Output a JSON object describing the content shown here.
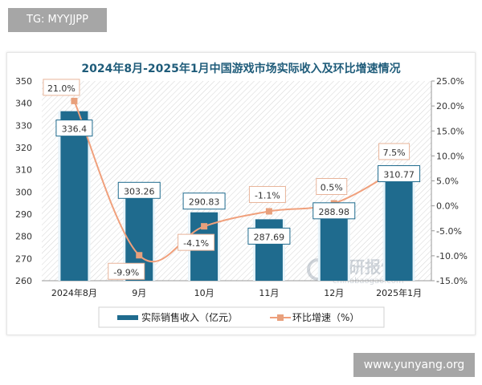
{
  "overlay_label": "TG: MYYJJPP",
  "watermark_site": "www.yunyang.org",
  "logo_watermark": {
    "text": "观研报告网",
    "sub": "chinabaogao.com"
  },
  "chart_data": {
    "type": "bar+line",
    "title": "2024年8月-2025年1月中国游戏市场实际收入及环比增速情况",
    "categories": [
      "2024年8月",
      "9月",
      "10月",
      "11月",
      "12月",
      "2025年1月"
    ],
    "series": [
      {
        "name": "实际销售收入（亿元）",
        "type": "bar",
        "axis": "left",
        "values": [
          336.4,
          303.26,
          290.83,
          287.69,
          288.98,
          310.77
        ],
        "labels": [
          "336.4",
          "303.26",
          "290.83",
          "287.69",
          "288.98",
          "310.77"
        ],
        "color": "#1f6b8e"
      },
      {
        "name": "环比增速（%）",
        "type": "line",
        "axis": "right",
        "values": [
          21.0,
          -9.9,
          -4.1,
          -1.1,
          0.5,
          7.5
        ],
        "labels": [
          "21.0%",
          "-9.9%",
          "-4.1%",
          "-1.1%",
          "0.5%",
          "7.5%"
        ],
        "color": "#f0a07c"
      }
    ],
    "y_left": {
      "range": [
        260,
        350
      ],
      "ticks": [
        "260",
        "270",
        "280",
        "290",
        "300",
        "310",
        "320",
        "330",
        "340",
        "350"
      ]
    },
    "y_right": {
      "range": [
        -15,
        25
      ],
      "ticks": [
        "-15.0%",
        "-10.0%",
        "-5.0%",
        "0.0%",
        "5.0%",
        "10.0%",
        "15.0%",
        "20.0%",
        "25.0%"
      ]
    },
    "grid": false,
    "legend": "bottom"
  }
}
